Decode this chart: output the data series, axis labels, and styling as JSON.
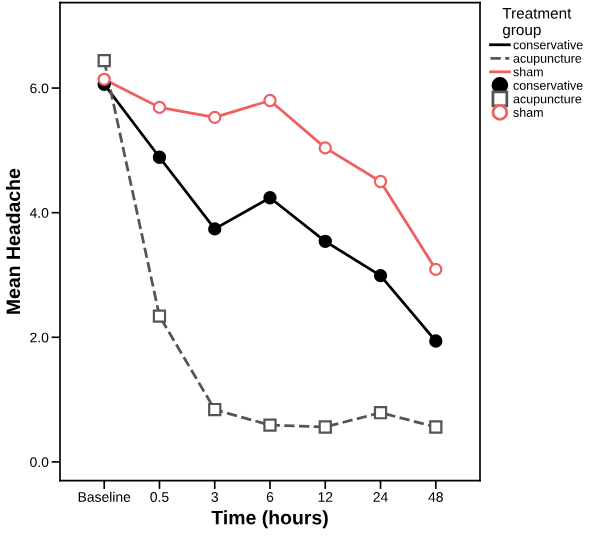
{
  "chart_data": {
    "type": "line",
    "xlabel": "Time (hours)",
    "ylabel": "Mean Headache",
    "legend_title": "Treatment\ngroup",
    "legend": "right",
    "categories": [
      "Baseline",
      "0.5",
      "3",
      "6",
      "12",
      "24",
      "48"
    ],
    "ylim": [
      -0.3,
      7.37
    ],
    "yticks": [
      {
        "value": 0,
        "label": "0.0"
      },
      {
        "value": 2,
        "label": "2.0"
      },
      {
        "value": 4,
        "label": "4.0"
      },
      {
        "value": 6,
        "label": "6.0"
      }
    ],
    "grid": false,
    "series": [
      {
        "name": "conservative",
        "color": "#000000",
        "line_style": "solid",
        "marker": "circle",
        "values": [
          6.06,
          4.89,
          3.74,
          4.24,
          3.54,
          2.99,
          1.94
        ]
      },
      {
        "name": "acupuncture",
        "color": "#555555",
        "line_style": "dashed",
        "marker": "square",
        "values": [
          6.44,
          2.34,
          0.84,
          0.59,
          0.56,
          0.79,
          0.56
        ]
      },
      {
        "name": "sham",
        "color": "#f06060",
        "line_style": "solid",
        "marker": "circle",
        "values": [
          6.14,
          5.69,
          5.53,
          5.8,
          5.04,
          4.5,
          3.09
        ]
      }
    ]
  }
}
